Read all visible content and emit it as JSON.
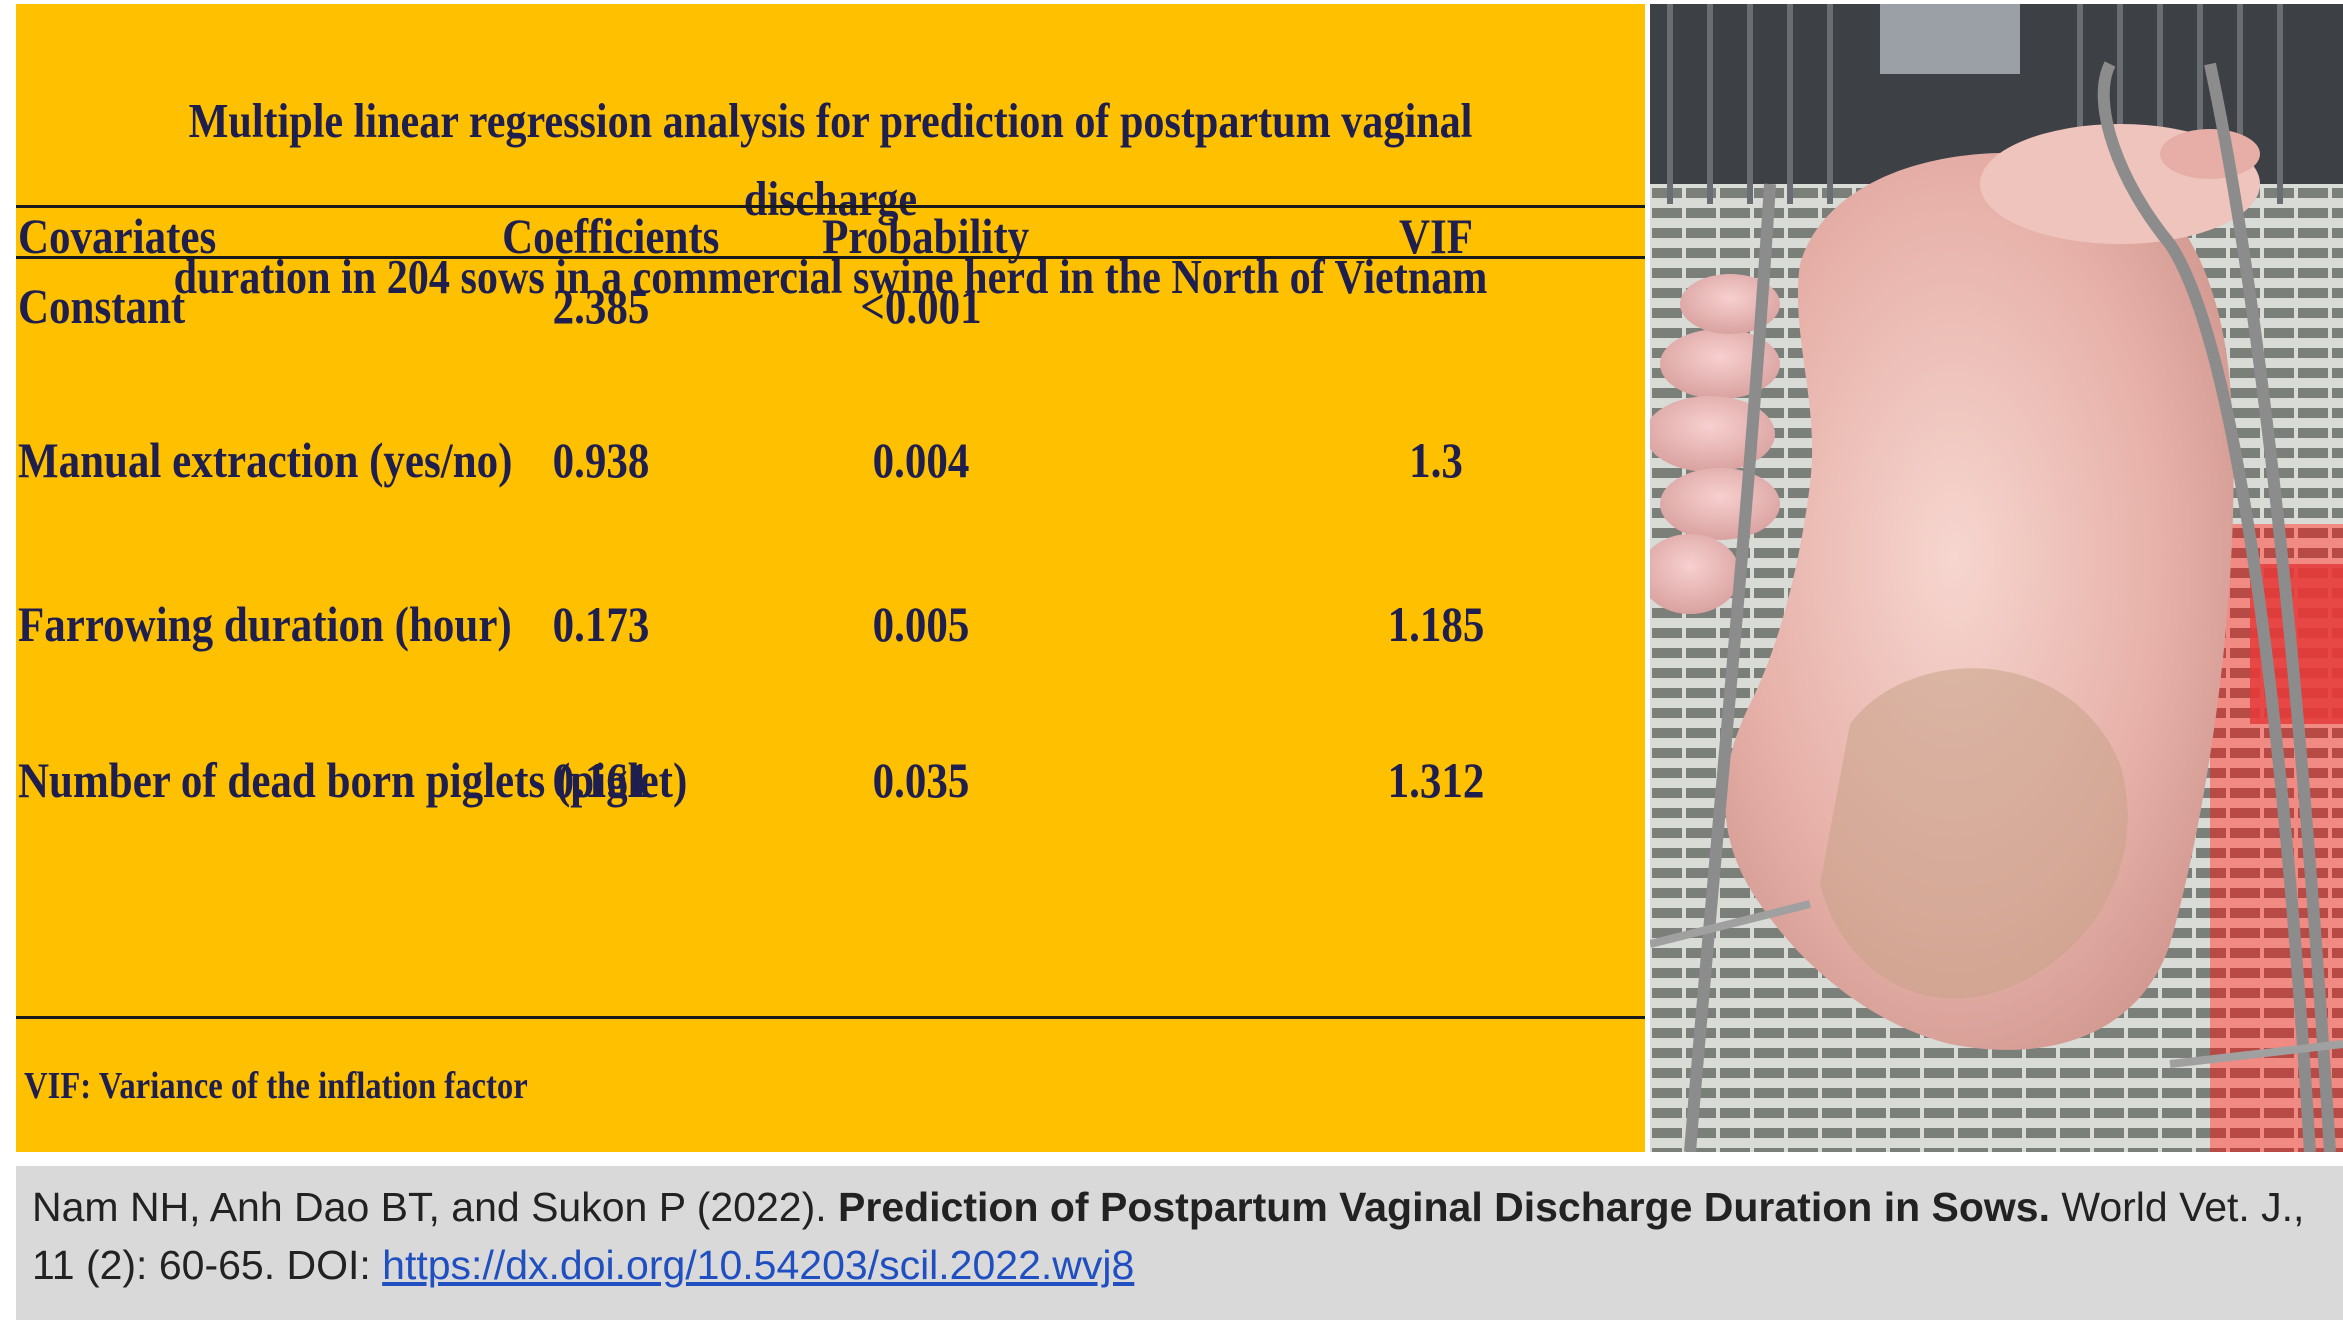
{
  "title": {
    "line1": "Multiple linear regression analysis for prediction of postpartum vaginal discharge",
    "line2": "duration in 204 sows in a commercial swine herd in the North of Vietnam"
  },
  "table": {
    "headers": [
      "Covariates",
      "Coefficients",
      "Probability",
      "VIF"
    ],
    "rows": [
      {
        "covariate": "Constant",
        "coefficient": "2.385",
        "probability": "<0.001",
        "vif": ""
      },
      {
        "covariate": "Manual extraction  (yes/no)",
        "coefficient": "0.938",
        "probability": "0.004",
        "vif": "1.3"
      },
      {
        "covariate": "Farrowing duration (hour)",
        "coefficient": "0.173",
        "probability": "0.005",
        "vif": "1.185"
      },
      {
        "covariate": "Number of dead born piglets  (piglet)",
        "coefficient": "0.161",
        "probability": "0.035",
        "vif": "1.312"
      }
    ],
    "footnote": "VIF: Variance of the inflation factor"
  },
  "citation": {
    "authors": "Nam NH, Anh Dao BT, and Sukon P (2022). ",
    "article_title": "Prediction of Postpartum Vaginal Discharge Duration in Sows.",
    "journal": " World Vet. J., 11 (2): 60-65. DOI: ",
    "doi_link": "https://dx.doi.org/10.54203/scil.2022.wvj8"
  },
  "colors": {
    "panel_background": "#FFC000",
    "text_navy": "#1F1F4F",
    "citation_background": "#D9D9D9",
    "link": "#1F4FC0"
  },
  "photo": {
    "subject": "sow-with-piglets-in-farrowing-crate"
  }
}
